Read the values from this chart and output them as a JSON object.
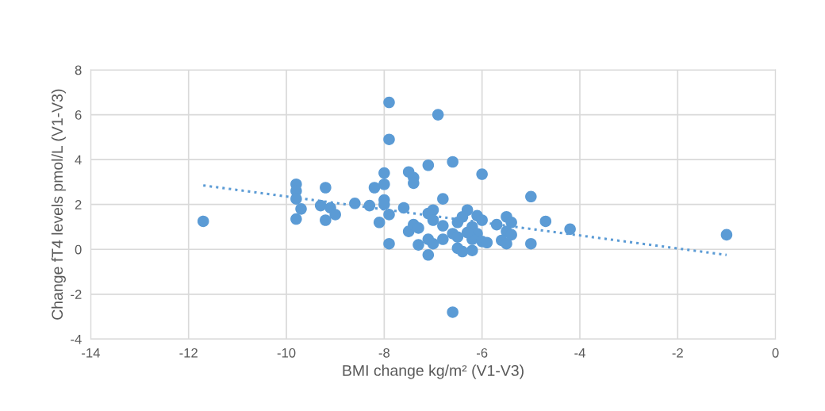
{
  "chart_data": {
    "type": "scatter",
    "xlabel": "BMI change kg/m² (V1-V3)",
    "ylabel": "Change fT4 levels pmol/L (V1-V3)",
    "xlim": [
      -14,
      0
    ],
    "xticks": [
      -14,
      -12,
      -10,
      -8,
      -6,
      -4,
      -2,
      0
    ],
    "ylim": [
      -4,
      8
    ],
    "yticks": [
      -4,
      -2,
      0,
      2,
      4,
      6,
      8
    ],
    "grid": true,
    "marker": "circle",
    "series": [
      {
        "color": "#5b9bd5",
        "x": [
          -11.7,
          -9.8,
          -9.8,
          -9.8,
          -9.8,
          -9.7,
          -9.2,
          -9.3,
          -9.2,
          -9.1,
          -9.0,
          -8.6,
          -8.3,
          -8.2,
          -8.1,
          -8.0,
          -8.0,
          -8.0,
          -8.0,
          -7.9,
          -7.9,
          -7.9,
          -7.9,
          -7.5,
          -7.4,
          -7.4,
          -7.6,
          -7.5,
          -7.4,
          -7.3,
          -7.3,
          -7.1,
          -6.9,
          -6.6,
          -6.0,
          -6.8,
          -7.0,
          -7.1,
          -7.0,
          -7.1,
          -7.1,
          -7.0,
          -6.8,
          -6.8,
          -6.6,
          -6.6,
          -6.3,
          -6.4,
          -6.5,
          -6.5,
          -6.4,
          -6.2,
          -6.2,
          -6.1,
          -6.0,
          -6.1,
          -6.2,
          -6.3,
          -6.5,
          -6.0,
          -5.9,
          -5.7,
          -5.5,
          -5.4,
          -5.5,
          -5.4,
          -5.6,
          -5.5,
          -5.0,
          -5.0,
          -4.7,
          -4.2,
          -1.0
        ],
        "values": [
          1.25,
          2.9,
          2.6,
          2.25,
          1.35,
          1.8,
          2.75,
          1.95,
          1.3,
          1.85,
          1.55,
          2.05,
          1.95,
          2.75,
          1.2,
          3.4,
          2.9,
          2.2,
          2.0,
          1.55,
          0.25,
          6.55,
          4.9,
          3.45,
          3.2,
          2.95,
          1.85,
          0.8,
          1.1,
          0.95,
          0.2,
          3.75,
          6.0,
          3.9,
          3.35,
          2.25,
          1.75,
          1.6,
          1.3,
          0.45,
          -0.25,
          0.25,
          1.05,
          0.45,
          0.7,
          -2.8,
          1.75,
          1.45,
          1.2,
          0.05,
          -0.1,
          -0.05,
          1.0,
          1.5,
          1.3,
          0.7,
          0.45,
          0.75,
          0.55,
          0.35,
          0.3,
          1.1,
          1.45,
          1.2,
          0.8,
          0.65,
          0.4,
          0.25,
          2.35,
          0.25,
          1.25,
          0.9,
          0.65
        ]
      },
      {
        "type": "line",
        "color": "#5b9bd5",
        "line_style": "dotted",
        "marker": "none",
        "x": [
          -11.7,
          -1.0
        ],
        "values": [
          2.85,
          -0.25
        ]
      }
    ]
  }
}
